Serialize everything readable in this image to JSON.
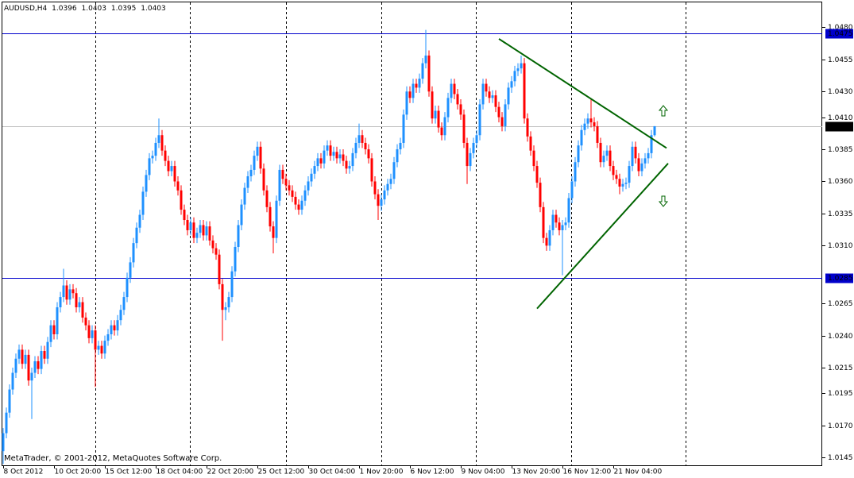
{
  "chart_data": {
    "type": "candlestick",
    "title": "AUDUSD,H4",
    "footer": "MetaTrader, © 2001-2012, MetaQuotes Software Corp.",
    "categories": [
      "8 Oct 2012",
      null,
      null,
      null,
      null,
      null,
      null,
      null,
      null,
      null,
      null,
      null,
      null,
      null,
      null,
      null,
      "10 Oct 20:00",
      null,
      null,
      null,
      null,
      null,
      null,
      null,
      null,
      null,
      null,
      null,
      null,
      null,
      null,
      null,
      "15 Oct 12:00",
      null,
      null,
      null,
      null,
      null,
      null,
      null,
      null,
      null,
      null,
      null,
      null,
      null,
      null,
      null,
      "18 Oct 04:00",
      null,
      null,
      null,
      null,
      null,
      null,
      null,
      null,
      null,
      null,
      null,
      null,
      null,
      null,
      null,
      "22 Oct 20:00",
      null,
      null,
      null,
      null,
      null,
      null,
      null,
      null,
      null,
      null,
      null,
      null,
      null,
      null,
      null,
      "25 Oct 12:00",
      null,
      null,
      null,
      null,
      null,
      null,
      null,
      null,
      null,
      null,
      null,
      null,
      null,
      null,
      null,
      "30 Oct 04:00",
      null,
      null,
      null,
      null,
      null,
      null,
      null,
      null,
      null,
      null,
      null,
      null,
      null,
      null,
      null,
      "1 Nov 20:00",
      null,
      null,
      null,
      null,
      null,
      null,
      null,
      null,
      null,
      null,
      null,
      null,
      null,
      null,
      null,
      "6 Nov 12:00",
      null,
      null,
      null,
      null,
      null,
      null,
      null,
      null,
      null,
      null,
      null,
      null,
      null,
      null,
      null,
      "9 Nov 04:00",
      null,
      null,
      null,
      null,
      null,
      null,
      null,
      null,
      null,
      null,
      null,
      null,
      null,
      null,
      null,
      "13 Nov 20:00",
      null,
      null,
      null,
      null,
      null,
      null,
      null,
      null,
      null,
      null,
      null,
      null,
      null,
      null,
      null,
      "16 Nov 12:00",
      null,
      null,
      null,
      null,
      null,
      null,
      null,
      null,
      null,
      null,
      null,
      null,
      null,
      null,
      null,
      "21 Nov 04:00",
      null,
      null,
      null,
      null,
      null,
      null,
      null,
      null,
      null,
      null,
      null,
      null,
      null
    ],
    "open": [
      1.015,
      1.0164,
      1.018,
      1.0198,
      1.0211,
      1.0222,
      1.0229,
      1.0218,
      1.0225,
      1.0205,
      1.0211,
      1.022,
      1.0214,
      1.0228,
      1.0222,
      1.0235,
      1.0248,
      1.0241,
      1.0262,
      1.027,
      1.0279,
      1.0268,
      1.0276,
      1.0273,
      1.0262,
      1.0266,
      1.0254,
      1.0248,
      1.0238,
      1.0244,
      1.0229,
      1.0232,
      1.0226,
      1.0236,
      1.0241,
      1.0248,
      1.0244,
      1.0252,
      1.026,
      1.027,
      1.0285,
      1.0297,
      1.0312,
      1.0324,
      1.0334,
      1.0352,
      1.0365,
      1.0378,
      1.038,
      1.039,
      1.0396,
      1.0384,
      1.0376,
      1.0368,
      1.0372,
      1.036,
      1.0353,
      1.0338,
      1.033,
      1.0322,
      1.0328,
      1.0316,
      1.032,
      1.0326,
      1.0318,
      1.0325,
      1.0314,
      1.0308,
      1.0303,
      1.028,
      1.026,
      1.0262,
      1.027,
      1.029,
      1.0309,
      1.0326,
      1.0342,
      1.0355,
      1.0364,
      1.0369,
      1.038,
      1.0387,
      1.037,
      1.0353,
      1.034,
      1.0325,
      1.0316,
      1.0345,
      1.0369,
      1.0362,
      1.0357,
      1.0353,
      1.0348,
      1.0342,
      1.0338,
      1.0345,
      1.0353,
      1.036,
      1.0366,
      1.0372,
      1.0378,
      1.0374,
      1.0384,
      1.0388,
      1.038,
      1.0383,
      1.0378,
      1.0381,
      1.0376,
      1.037,
      1.0372,
      1.0382,
      1.039,
      1.0396,
      1.039,
      1.0385,
      1.0378,
      1.036,
      1.035,
      1.0341,
      1.0346,
      1.0353,
      1.0358,
      1.0362,
      1.0375,
      1.0385,
      1.039,
      1.0412,
      1.043,
      1.0425,
      1.0436,
      1.0433,
      1.044,
      1.0452,
      1.0458,
      1.043,
      1.0409,
      1.0415,
      1.0402,
      1.0396,
      1.041,
      1.0425,
      1.0436,
      1.0428,
      1.042,
      1.0412,
      1.039,
      1.0372,
      1.0382,
      1.039,
      1.0396,
      1.042,
      1.0436,
      1.043,
      1.0425,
      1.0427,
      1.0418,
      1.041,
      1.0403,
      1.042,
      1.0433,
      1.0438,
      1.0446,
      1.0448,
      1.0452,
      1.0409,
      1.0395,
      1.0384,
      1.0372,
      1.0359,
      1.034,
      1.0316,
      1.031,
      1.0322,
      1.0334,
      1.0328,
      1.0322,
      1.0326,
      1.0328,
      1.0347,
      1.036,
      1.0375,
      1.0388,
      1.04,
      1.0405,
      1.0409,
      1.0406,
      1.0403,
      1.039,
      1.0375,
      1.038,
      1.0384,
      1.0372,
      1.0365,
      1.0362,
      1.0356,
      1.0358,
      1.0359,
      1.0372,
      1.0387,
      1.0378,
      1.0368,
      1.0374,
      1.0378,
      1.0382,
      1.0396
    ],
    "high": [
      1.0168,
      1.0184,
      1.0202,
      1.0215,
      1.0226,
      1.0233,
      1.0233,
      1.0229,
      1.0229,
      1.0215,
      1.0224,
      1.0224,
      1.0232,
      1.0232,
      1.0239,
      1.0252,
      1.0252,
      1.0266,
      1.0274,
      1.0292,
      1.0283,
      1.028,
      1.028,
      1.0277,
      1.027,
      1.027,
      1.0258,
      1.0252,
      1.0248,
      1.0248,
      1.0236,
      1.0236,
      1.024,
      1.0245,
      1.0252,
      1.0252,
      1.0256,
      1.0264,
      1.0274,
      1.0289,
      1.0301,
      1.0316,
      1.0328,
      1.0338,
      1.0356,
      1.0369,
      1.0382,
      1.0384,
      1.0394,
      1.0409,
      1.04,
      1.0388,
      1.038,
      1.0376,
      1.0376,
      1.0364,
      1.0357,
      1.0342,
      1.0334,
      1.0332,
      1.0332,
      1.0324,
      1.033,
      1.033,
      1.0329,
      1.0329,
      1.0318,
      1.0312,
      1.0307,
      1.0284,
      1.0266,
      1.0274,
      1.0294,
      1.0313,
      1.033,
      1.0346,
      1.0359,
      1.0368,
      1.0373,
      1.0384,
      1.0391,
      1.0391,
      1.0374,
      1.0357,
      1.0344,
      1.0329,
      1.0349,
      1.0373,
      1.0373,
      1.0366,
      1.0361,
      1.0357,
      1.0352,
      1.0346,
      1.0349,
      1.0357,
      1.0364,
      1.037,
      1.0376,
      1.0382,
      1.0382,
      1.0388,
      1.0392,
      1.0392,
      1.0387,
      1.0387,
      1.0385,
      1.0385,
      1.038,
      1.0376,
      1.0386,
      1.0394,
      1.0405,
      1.04,
      1.0394,
      1.0389,
      1.0382,
      1.0364,
      1.0354,
      1.035,
      1.0357,
      1.0362,
      1.0366,
      1.0379,
      1.0389,
      1.0394,
      1.0416,
      1.0434,
      1.0434,
      1.044,
      1.044,
      1.0444,
      1.0456,
      1.0478,
      1.0462,
      1.0434,
      1.0419,
      1.0419,
      1.0406,
      1.0414,
      1.0429,
      1.044,
      1.044,
      1.0432,
      1.0424,
      1.0416,
      1.0394,
      1.0386,
      1.0394,
      1.04,
      1.0424,
      1.044,
      1.044,
      1.0434,
      1.0431,
      1.0431,
      1.0422,
      1.0414,
      1.0424,
      1.0437,
      1.0442,
      1.045,
      1.0452,
      1.0458,
      1.0456,
      1.0413,
      1.0399,
      1.0388,
      1.0376,
      1.0363,
      1.0344,
      1.032,
      1.0326,
      1.0338,
      1.0338,
      1.0332,
      1.033,
      1.0332,
      1.0351,
      1.0364,
      1.0379,
      1.0392,
      1.0404,
      1.0409,
      1.0413,
      1.0424,
      1.041,
      1.0407,
      1.0394,
      1.0384,
      1.0388,
      1.0388,
      1.0376,
      1.0369,
      1.0366,
      1.0362,
      1.0363,
      1.0376,
      1.0391,
      1.0391,
      1.0382,
      1.0378,
      1.0382,
      1.0386,
      1.04,
      1.0403
    ],
    "low": [
      1.014,
      1.016,
      1.0176,
      1.0194,
      1.0207,
      1.0218,
      1.0214,
      1.0214,
      1.0201,
      1.0175,
      1.0207,
      1.021,
      1.021,
      1.0218,
      1.0218,
      1.0231,
      1.0237,
      1.0237,
      1.0258,
      1.0266,
      1.0264,
      1.0264,
      1.0269,
      1.0258,
      1.0258,
      1.025,
      1.0244,
      1.0234,
      1.0234,
      1.02,
      1.0225,
      1.0222,
      1.0222,
      1.0232,
      1.0237,
      1.024,
      1.024,
      1.0248,
      1.0256,
      1.0266,
      1.0281,
      1.0293,
      1.0308,
      1.032,
      1.033,
      1.0348,
      1.0361,
      1.0374,
      1.0376,
      1.0386,
      1.038,
      1.0372,
      1.0364,
      1.0364,
      1.0356,
      1.0349,
      1.0334,
      1.0326,
      1.0318,
      1.0318,
      1.0312,
      1.0312,
      1.0316,
      1.0314,
      1.0314,
      1.031,
      1.0304,
      1.0299,
      1.0276,
      1.0236,
      1.0252,
      1.0258,
      1.0266,
      1.0286,
      1.0305,
      1.0322,
      1.0338,
      1.0351,
      1.036,
      1.0365,
      1.0376,
      1.0366,
      1.0349,
      1.0336,
      1.0321,
      1.0304,
      1.0312,
      1.0341,
      1.0358,
      1.0353,
      1.0349,
      1.0344,
      1.0338,
      1.0334,
      1.0334,
      1.0341,
      1.0349,
      1.0356,
      1.0362,
      1.0368,
      1.037,
      1.037,
      1.038,
      1.0376,
      1.0376,
      1.0374,
      1.0374,
      1.0372,
      1.0366,
      1.0366,
      1.0368,
      1.0378,
      1.0386,
      1.0386,
      1.0381,
      1.0374,
      1.0356,
      1.0346,
      1.033,
      1.0337,
      1.0342,
      1.0349,
      1.0354,
      1.0358,
      1.0371,
      1.0381,
      1.0386,
      1.0408,
      1.0421,
      1.0421,
      1.0429,
      1.0429,
      1.0436,
      1.0448,
      1.0426,
      1.0405,
      1.0405,
      1.0398,
      1.0392,
      1.0392,
      1.0406,
      1.0421,
      1.0424,
      1.0416,
      1.0408,
      1.0386,
      1.0358,
      1.0368,
      1.0378,
      1.0386,
      1.0392,
      1.0416,
      1.0426,
      1.0421,
      1.0421,
      1.0414,
      1.0406,
      1.0399,
      1.0399,
      1.0416,
      1.0429,
      1.0434,
      1.0442,
      1.0444,
      1.0405,
      1.0391,
      1.038,
      1.0368,
      1.0355,
      1.0336,
      1.0312,
      1.0306,
      1.0306,
      1.0318,
      1.0324,
      1.0318,
      1.0287,
      1.0322,
      1.0324,
      1.0343,
      1.0356,
      1.0371,
      1.0384,
      1.0396,
      1.0401,
      1.0402,
      1.0399,
      1.0386,
      1.0371,
      1.0371,
      1.0376,
      1.0368,
      1.0361,
      1.0358,
      1.035,
      1.0352,
      1.0354,
      1.0355,
      1.0368,
      1.0374,
      1.0364,
      1.0364,
      1.037,
      1.0374,
      1.0378,
      1.0395
    ],
    "close": [
      1.0164,
      1.018,
      1.0198,
      1.0211,
      1.0222,
      1.0229,
      1.0218,
      1.0225,
      1.0205,
      1.0211,
      1.022,
      1.0214,
      1.0228,
      1.0222,
      1.0235,
      1.0248,
      1.0241,
      1.0262,
      1.027,
      1.0279,
      1.0268,
      1.0276,
      1.0273,
      1.0262,
      1.0266,
      1.0254,
      1.0248,
      1.0238,
      1.0244,
      1.0229,
      1.0232,
      1.0226,
      1.0236,
      1.0241,
      1.0248,
      1.0244,
      1.0252,
      1.026,
      1.027,
      1.0285,
      1.0297,
      1.0312,
      1.0324,
      1.0334,
      1.0352,
      1.0365,
      1.0378,
      1.038,
      1.039,
      1.0396,
      1.0384,
      1.0376,
      1.0368,
      1.0372,
      1.036,
      1.0353,
      1.0338,
      1.033,
      1.0322,
      1.0328,
      1.0316,
      1.032,
      1.0326,
      1.0318,
      1.0325,
      1.0314,
      1.0308,
      1.0303,
      1.028,
      1.026,
      1.0262,
      1.027,
      1.029,
      1.0309,
      1.0326,
      1.0342,
      1.0355,
      1.0364,
      1.0369,
      1.038,
      1.0387,
      1.037,
      1.0353,
      1.034,
      1.0325,
      1.0316,
      1.0345,
      1.0369,
      1.0362,
      1.0357,
      1.0353,
      1.0348,
      1.0342,
      1.0338,
      1.0345,
      1.0353,
      1.036,
      1.0366,
      1.0372,
      1.0378,
      1.0374,
      1.0384,
      1.0388,
      1.038,
      1.0383,
      1.0378,
      1.0381,
      1.0376,
      1.037,
      1.0372,
      1.0382,
      1.039,
      1.0396,
      1.039,
      1.0385,
      1.0378,
      1.036,
      1.035,
      1.0341,
      1.0346,
      1.0353,
      1.0358,
      1.0362,
      1.0375,
      1.0385,
      1.039,
      1.0412,
      1.043,
      1.0425,
      1.0436,
      1.0433,
      1.044,
      1.0452,
      1.0458,
      1.043,
      1.0409,
      1.0415,
      1.0402,
      1.0396,
      1.041,
      1.0425,
      1.0436,
      1.0428,
      1.042,
      1.0412,
      1.039,
      1.0372,
      1.0382,
      1.039,
      1.0396,
      1.042,
      1.0436,
      1.043,
      1.0425,
      1.0427,
      1.0418,
      1.041,
      1.0403,
      1.042,
      1.0433,
      1.0438,
      1.0446,
      1.0448,
      1.0452,
      1.0409,
      1.0395,
      1.0384,
      1.0372,
      1.0359,
      1.034,
      1.0316,
      1.031,
      1.0322,
      1.0334,
      1.0328,
      1.0322,
      1.0326,
      1.0328,
      1.0347,
      1.036,
      1.0375,
      1.0388,
      1.04,
      1.0405,
      1.0409,
      1.0406,
      1.0403,
      1.039,
      1.0375,
      1.038,
      1.0384,
      1.0372,
      1.0365,
      1.0362,
      1.0356,
      1.0358,
      1.0359,
      1.0372,
      1.0387,
      1.0378,
      1.0368,
      1.0374,
      1.0378,
      1.0382,
      1.0396,
      1.0403
    ],
    "up_color": "#1e90ff",
    "down_color": "#ff0000",
    "ylim": [
      1.0139,
      1.05
    ],
    "yticks": [
      {
        "value": 1.048,
        "label": "1.0480"
      },
      1.0455,
      {
        "value": 1.043,
        "label": "1.0430"
      },
      {
        "value": 1.041,
        "label": "1.0410"
      },
      1.0385,
      {
        "value": 1.036,
        "label": "1.0360"
      },
      1.0335,
      {
        "value": 1.031,
        "label": "1.0310"
      },
      1.0265,
      {
        "value": 1.024,
        "label": "1.0240"
      },
      1.0215,
      1.0195,
      {
        "value": 1.017,
        "label": "1.0170"
      },
      1.0145
    ],
    "hlines": [
      1.0475,
      1.0285
    ],
    "hline_color": "#0000cc",
    "trendlines": [
      {
        "x": [
          156,
          208.75
        ],
        "y": [
          1.0471,
          1.0386
        ]
      },
      {
        "x": [
          168,
          209.25
        ],
        "y": [
          1.0261,
          1.0374
        ]
      }
    ],
    "trendline_color": "#006400"
  }
}
